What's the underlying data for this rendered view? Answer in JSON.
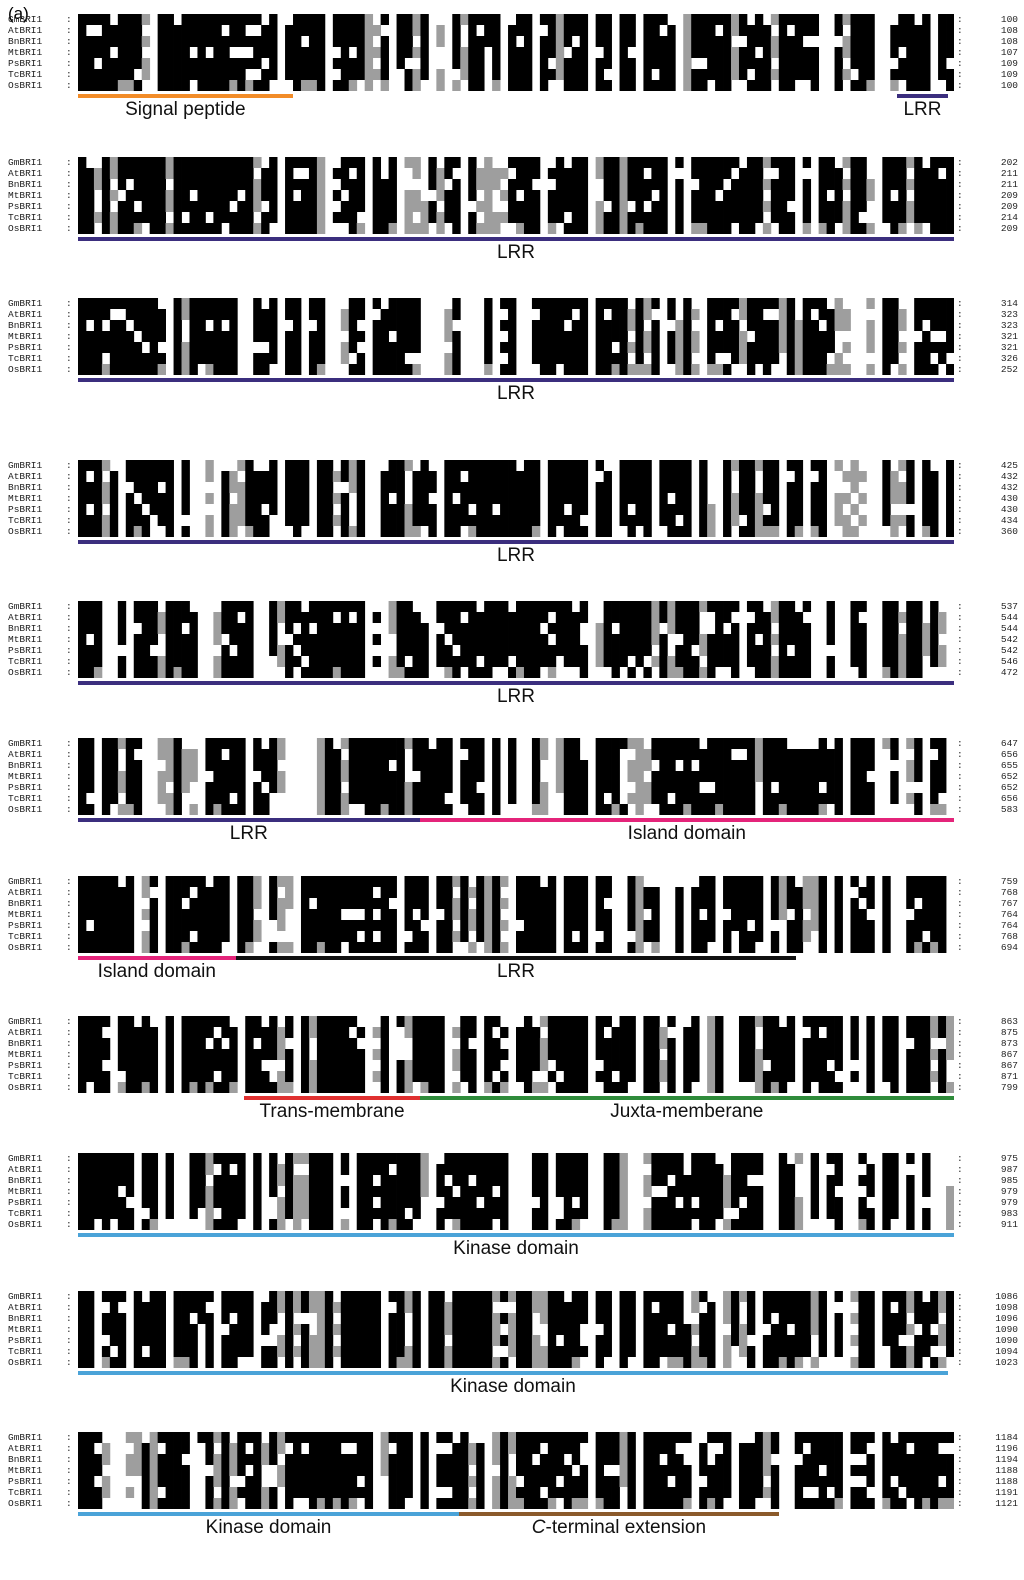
{
  "panel_label": "(a)",
  "sequence_names": [
    "GmBRI1",
    "AtBRI1",
    "BnBRI1",
    "MtBRI1",
    "PsBRI1",
    "TcBRI1",
    "OsBRI1"
  ],
  "colors": {
    "signal": "#f28c28",
    "lrr": "#3b2e7e",
    "island": "#e4247a",
    "lrr_black": "#111111",
    "trans": "#e03030",
    "juxta": "#2e8b3a",
    "kinase": "#4aa3d8",
    "cterm": "#8b5a2b",
    "identical": "#000000",
    "similar": "#9e9e9e"
  },
  "blocks": [
    {
      "end_numbers": [
        "100",
        "108",
        "108",
        "107",
        "109",
        "109",
        "100"
      ],
      "domains": [
        {
          "label": "Signal peptide",
          "color": "signal",
          "start": 0.0,
          "end": 0.245
        },
        {
          "label": "LRR",
          "color": "lrr",
          "start": 0.935,
          "end": 0.993
        }
      ]
    },
    {
      "end_numbers": [
        "202",
        "211",
        "211",
        "209",
        "209",
        "214",
        "209"
      ],
      "domains": [
        {
          "label": "LRR",
          "color": "lrr",
          "start": 0.0,
          "end": 1.0
        }
      ]
    },
    {
      "end_numbers": [
        "314",
        "323",
        "323",
        "321",
        "321",
        "326",
        "252"
      ],
      "domains": [
        {
          "label": "LRR",
          "color": "lrr",
          "start": 0.0,
          "end": 1.0
        }
      ]
    },
    {
      "end_numbers": [
        "425",
        "432",
        "432",
        "430",
        "430",
        "434",
        "360"
      ],
      "domains": [
        {
          "label": "LRR",
          "color": "lrr",
          "start": 0.0,
          "end": 1.0
        }
      ]
    },
    {
      "end_numbers": [
        "537",
        "544",
        "544",
        "542",
        "542",
        "546",
        "472"
      ],
      "domains": [
        {
          "label": "LRR",
          "color": "lrr",
          "start": 0.0,
          "end": 1.0
        }
      ]
    },
    {
      "end_numbers": [
        "647",
        "656",
        "655",
        "652",
        "652",
        "656",
        "583"
      ],
      "domains": [
        {
          "label": "LRR",
          "color": "lrr",
          "start": 0.0,
          "end": 0.39
        },
        {
          "label": "Island domain",
          "color": "island",
          "start": 0.39,
          "end": 1.0
        }
      ]
    },
    {
      "end_numbers": [
        "759",
        "768",
        "767",
        "764",
        "764",
        "768",
        "694"
      ],
      "domains": [
        {
          "label": "Island domain",
          "color": "island",
          "start": 0.0,
          "end": 0.18
        },
        {
          "label": "LRR",
          "color": "lrr_black",
          "start": 0.18,
          "end": 0.82
        }
      ]
    },
    {
      "end_numbers": [
        "863",
        "875",
        "873",
        "867",
        "867",
        "871",
        "799"
      ],
      "domains": [
        {
          "label": "Trans-membrane",
          "color": "trans",
          "start": 0.19,
          "end": 0.39
        },
        {
          "label": "Juxta-memberane",
          "color": "juxta",
          "start": 0.39,
          "end": 1.0
        }
      ]
    },
    {
      "end_numbers": [
        "975",
        "987",
        "985",
        "979",
        "979",
        "983",
        "911"
      ],
      "domains": [
        {
          "label": "Kinase domain",
          "color": "kinase",
          "start": 0.0,
          "end": 1.0
        }
      ]
    },
    {
      "end_numbers": [
        "1086",
        "1098",
        "1096",
        "1090",
        "1090",
        "1094",
        "1023"
      ],
      "domains": [
        {
          "label": "Kinase domain",
          "color": "kinase",
          "start": 0.0,
          "end": 0.993
        }
      ]
    },
    {
      "end_numbers": [
        "1184",
        "1196",
        "1194",
        "1188",
        "1188",
        "1191",
        "1121"
      ],
      "domains": [
        {
          "label": "Kinase domain",
          "color": "kinase",
          "start": 0.0,
          "end": 0.435
        },
        {
          "label": "C-terminal extension",
          "label_italic": "C",
          "label_rest": "-terminal extension",
          "color": "cterm",
          "start": 0.435,
          "end": 0.8
        }
      ]
    }
  ]
}
